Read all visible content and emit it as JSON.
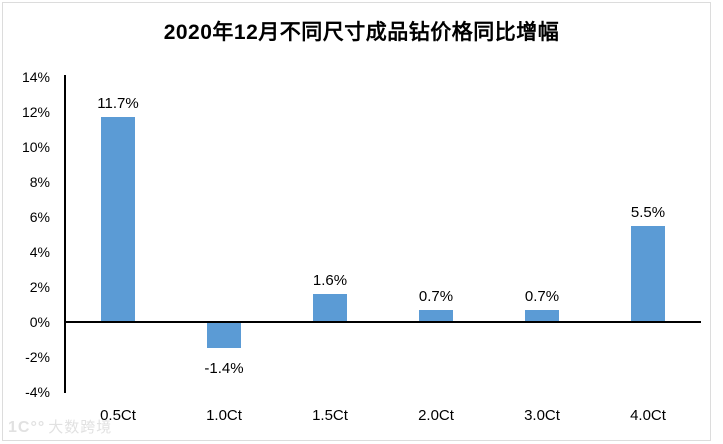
{
  "title": "2020年12月不同尺寸成品钻价格同比增幅",
  "watermark": {
    "logo": "1C°°",
    "text": "大数跨境"
  },
  "chart_data": {
    "type": "bar",
    "title": "2020年12月不同尺寸成品钻价格同比增幅",
    "categories": [
      "0.5Ct",
      "1.0Ct",
      "1.5Ct",
      "2.0Ct",
      "3.0Ct",
      "4.0Ct"
    ],
    "values": [
      11.7,
      -1.4,
      1.6,
      0.7,
      0.7,
      5.5
    ],
    "data_labels": [
      "11.7%",
      "-1.4%",
      "1.6%",
      "0.7%",
      "0.7%",
      "5.5%"
    ],
    "y_ticks": [
      "14%",
      "12%",
      "10%",
      "8%",
      "6%",
      "4%",
      "2%",
      "0%",
      "-2%",
      "-4%"
    ],
    "y_tick_values": [
      14,
      12,
      10,
      8,
      6,
      4,
      2,
      0,
      -2,
      -4
    ],
    "ylim": [
      -4,
      14
    ],
    "xlabel": "",
    "ylabel": "",
    "grid": false,
    "legend": "none",
    "bar_color": "#5B9BD5",
    "axis_color": "#000000"
  }
}
